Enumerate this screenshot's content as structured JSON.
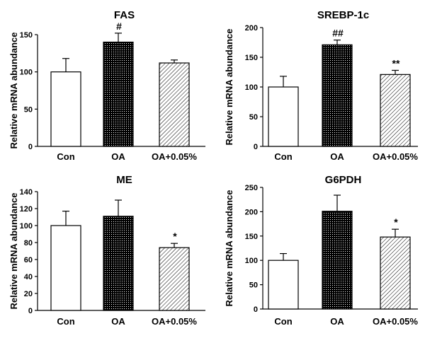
{
  "figure": {
    "panel_count": 4
  },
  "chart_data": [
    {
      "type": "bar",
      "title": "FAS",
      "ylabel": "Relative mRNA abundance",
      "xlabel": "",
      "ylim": [
        0,
        150
      ],
      "yticks": [
        0,
        50,
        100,
        150
      ],
      "categories": [
        "Con",
        "OA",
        "OA+0.05%"
      ],
      "values": [
        100,
        140,
        112
      ],
      "errors": [
        18,
        12,
        4
      ],
      "annotations": [
        "",
        "#",
        ""
      ],
      "patterns": [
        "white",
        "dots",
        "hatch"
      ]
    },
    {
      "type": "bar",
      "title": "SREBP-1c",
      "ylabel": "Relative mRNA abundance",
      "xlabel": "",
      "ylim": [
        0,
        200
      ],
      "yticks": [
        0,
        50,
        100,
        150,
        200
      ],
      "categories": [
        "Con",
        "OA",
        "OA+0.05%"
      ],
      "values": [
        100,
        171,
        121
      ],
      "errors": [
        18,
        8,
        7
      ],
      "annotations": [
        "",
        "##",
        "**"
      ],
      "patterns": [
        "white",
        "dots",
        "hatch"
      ]
    },
    {
      "type": "bar",
      "title": "ME",
      "ylabel": "Relative mRNA abundance",
      "xlabel": "",
      "ylim": [
        0,
        140
      ],
      "yticks": [
        0,
        20,
        40,
        60,
        80,
        100,
        120,
        140
      ],
      "categories": [
        "Con",
        "OA",
        "OA+0.05%"
      ],
      "values": [
        100,
        111,
        74
      ],
      "errors": [
        17,
        19,
        5
      ],
      "annotations": [
        "",
        "",
        "*"
      ],
      "patterns": [
        "white",
        "dots",
        "hatch"
      ]
    },
    {
      "type": "bar",
      "title": "G6PDH",
      "ylabel": "Relative mRNA abundance",
      "xlabel": "",
      "ylim": [
        0,
        250
      ],
      "yticks": [
        0,
        50,
        100,
        150,
        200,
        250
      ],
      "categories": [
        "Con",
        "OA",
        "OA+0.05%"
      ],
      "values": [
        100,
        201,
        148
      ],
      "errors": [
        14,
        33,
        16
      ],
      "annotations": [
        "",
        "",
        "*"
      ],
      "patterns": [
        "white",
        "dots",
        "hatch"
      ]
    }
  ],
  "colors": {
    "axis": "#000000",
    "bar_fill_white": "#ffffff",
    "background": "#ffffff"
  }
}
